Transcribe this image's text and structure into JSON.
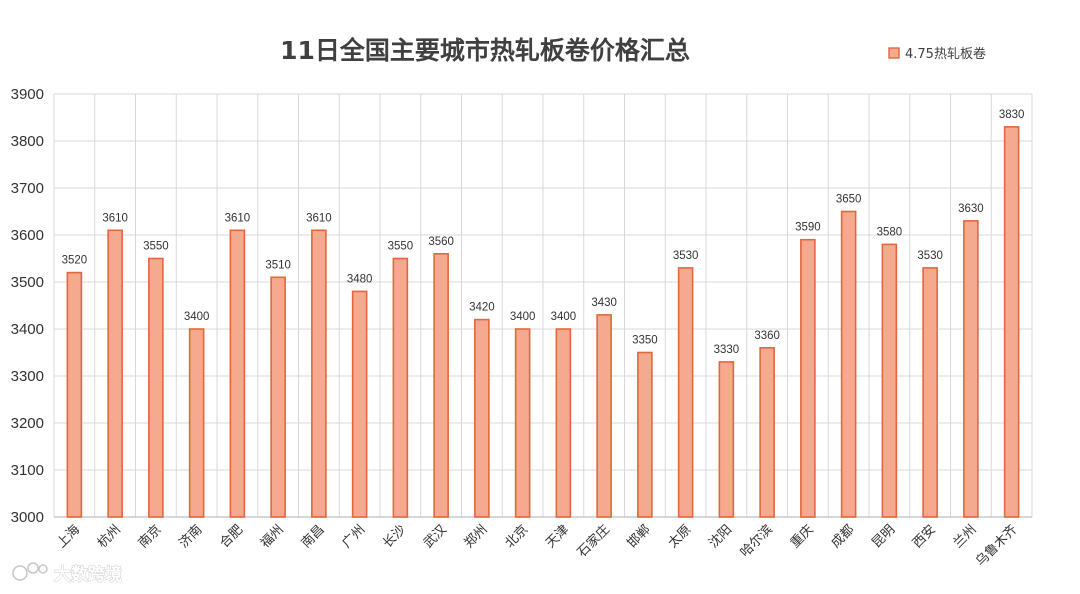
{
  "chart_data": {
    "type": "bar",
    "title": "11日全国主要城市热轧板卷价格汇总",
    "categories": [
      "上海",
      "杭州",
      "南京",
      "济南",
      "合肥",
      "福州",
      "南昌",
      "广州",
      "长沙",
      "武汉",
      "郑州",
      "北京",
      "天津",
      "石家庄",
      "邯郸",
      "太原",
      "沈阳",
      "哈尔滨",
      "重庆",
      "成都",
      "昆明",
      "西安",
      "兰州",
      "乌鲁木齐"
    ],
    "series": [
      {
        "name": "4.75热轧板卷",
        "values": [
          3520,
          3610,
          3550,
          3400,
          3610,
          3510,
          3610,
          3480,
          3550,
          3560,
          3420,
          3400,
          3400,
          3430,
          3350,
          3530,
          3330,
          3360,
          3590,
          3650,
          3580,
          3530,
          3630,
          3830
        ],
        "fill_color": "#f5a98f",
        "stroke_color": "#e2673c"
      }
    ],
    "yticks": [
      3000,
      3100,
      3200,
      3300,
      3400,
      3500,
      3600,
      3700,
      3800,
      3900
    ],
    "ylim": [
      3000,
      3900
    ],
    "xlabel": "",
    "ylabel": "",
    "grid": true,
    "legend_position": "top-right",
    "data_labels": true
  },
  "watermark": {
    "text": "大数跨境"
  },
  "colors": {
    "grid": "#d9d9d9",
    "axis": "#bfbfbf",
    "text": "#333333",
    "title": "#404040"
  }
}
